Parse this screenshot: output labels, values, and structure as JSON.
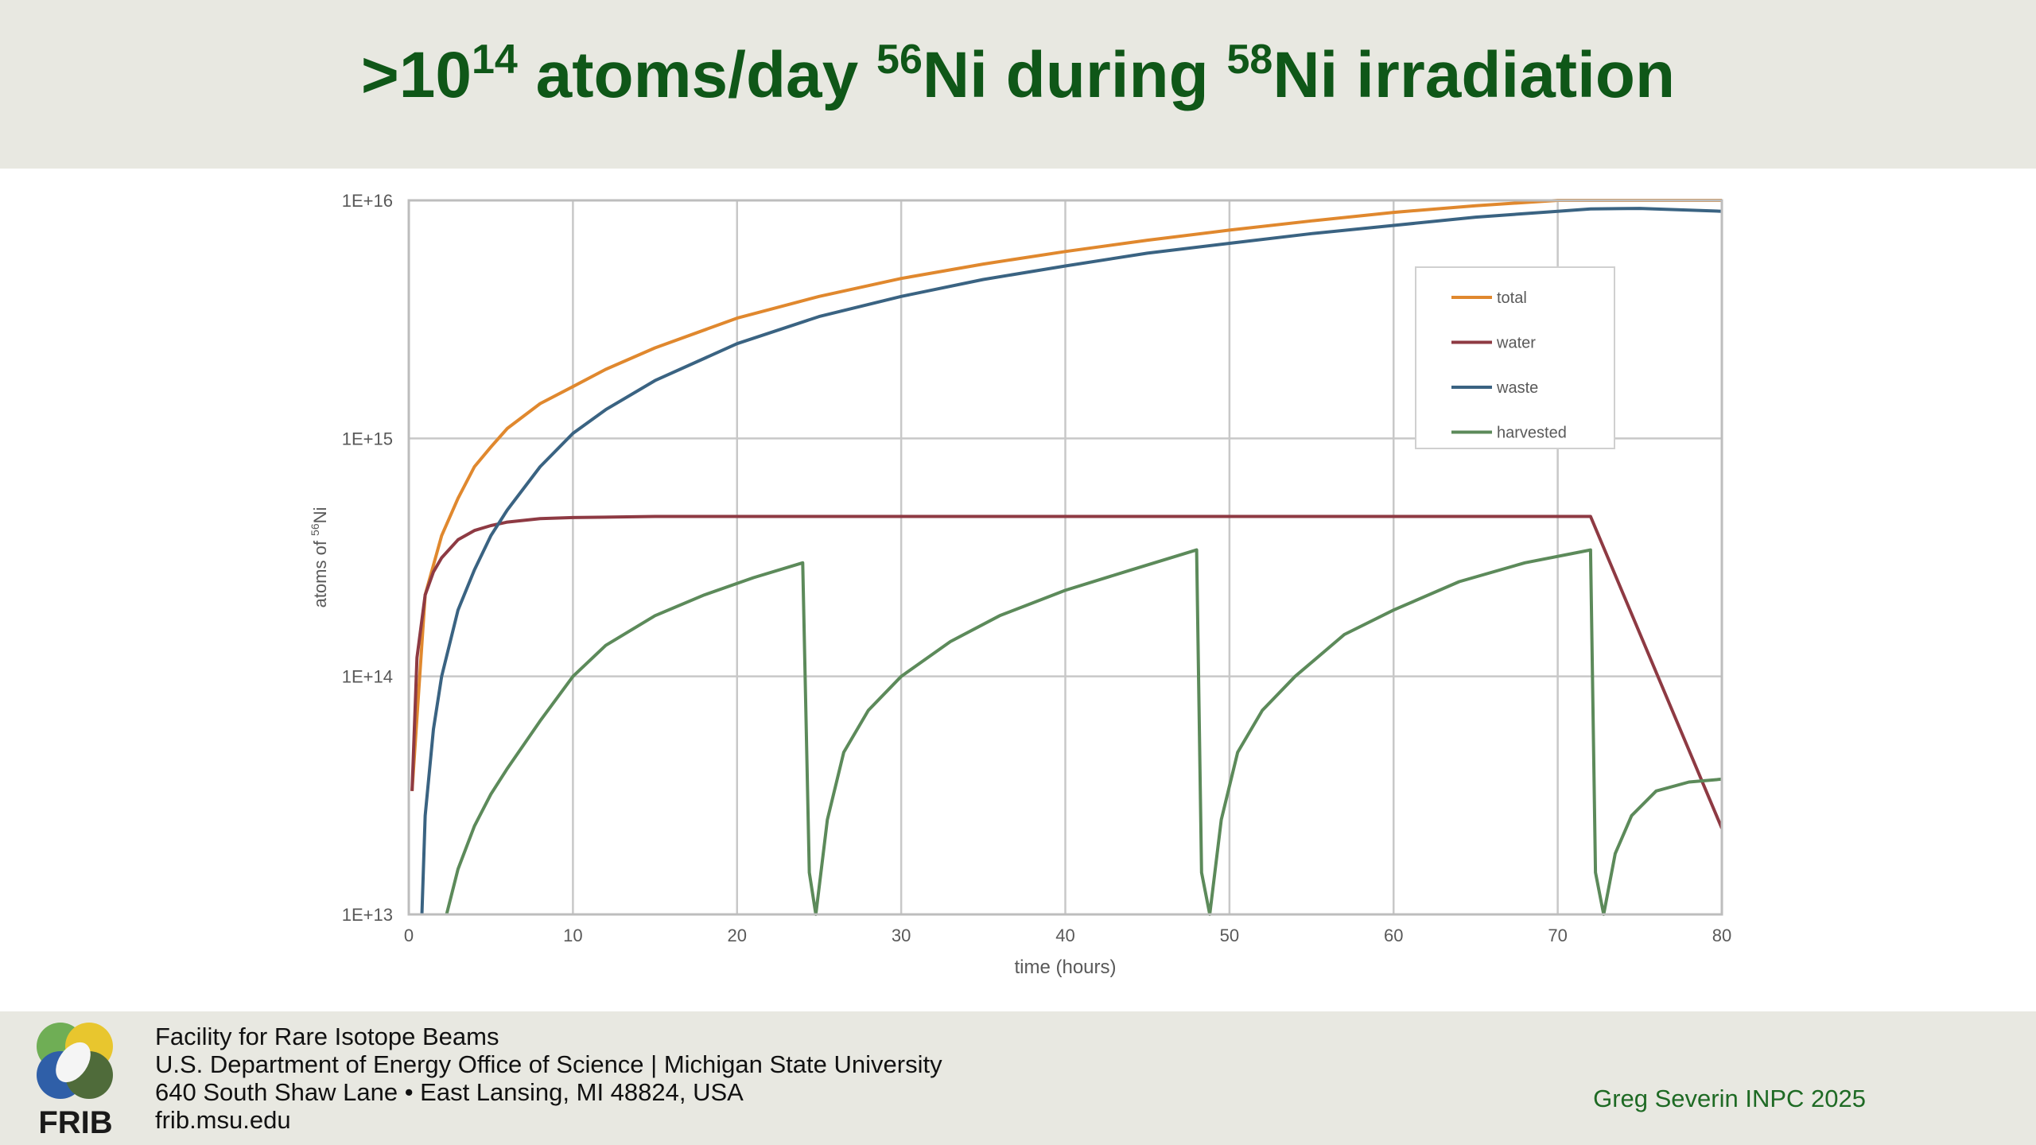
{
  "slide": {
    "title_parts": [
      ">10",
      "14",
      " atoms/day ",
      "56",
      "Ni during ",
      "58",
      "Ni irradiation"
    ]
  },
  "footer": {
    "logo_text": "FRIB",
    "address_lines": [
      "Facility for Rare Isotope Beams",
      "U.S. Department of Energy Office of Science | Michigan State University",
      "640 South Shaw Lane • East Lansing, MI 48824, USA",
      "frib.msu.edu"
    ],
    "credit": "Greg Severin INPC 2025"
  },
  "colors": {
    "title": "#0f5718",
    "header_bg": "#e8e8e1",
    "grid": "#c8c8c8",
    "credit": "#1e6a24"
  },
  "chart_data": {
    "type": "line",
    "title": "",
    "xlabel": "time (hours)",
    "ylabel_parts": [
      "atoms of ",
      "56",
      "Ni"
    ],
    "xlim": [
      0,
      80
    ],
    "ylim": [
      10000000000000.0,
      1e+16
    ],
    "yscale": "log",
    "xticks": [
      0,
      10,
      20,
      30,
      40,
      50,
      60,
      70,
      80
    ],
    "xtick_labels": [
      "0",
      "10",
      "20",
      "30",
      "40",
      "50",
      "60",
      "70",
      "80"
    ],
    "yticks": [
      10000000000000.0,
      100000000000000.0,
      1000000000000000.0,
      1e+16
    ],
    "ytick_labels": [
      "1E+13",
      "1E+14",
      "1E+15",
      "1E+16"
    ],
    "grid": true,
    "legend_position": "top-right",
    "series": [
      {
        "name": "total",
        "color": "#e0882e",
        "x": [
          0.2,
          1,
          2,
          3,
          4,
          5,
          6,
          8,
          10,
          12,
          15,
          20,
          25,
          30,
          35,
          40,
          45,
          50,
          55,
          60,
          65,
          70,
          72,
          75,
          80
        ],
        "y": [
          33000000000000.0,
          220000000000000.0,
          390000000000000.0,
          560000000000000.0,
          760000000000000.0,
          920000000000000.0,
          1100000000000000.0,
          1400000000000000.0,
          1650000000000000.0,
          1950000000000000.0,
          2400000000000000.0,
          3200000000000000.0,
          3950000000000000.0,
          4700000000000000.0,
          5400000000000000.0,
          6100000000000000.0,
          6800000000000000.0,
          7500000000000000.0,
          8200000000000000.0,
          8900000000000000.0,
          9500000000000000.0,
          1e+16,
          1e+16,
          1e+16,
          1e+16
        ]
      },
      {
        "name": "water",
        "color": "#8e3a43",
        "x": [
          0.2,
          0.5,
          1,
          1.5,
          2,
          3,
          4,
          5,
          6,
          8,
          10,
          15,
          20,
          72,
          80
        ],
        "y": [
          33000000000000.0,
          120000000000000.0,
          220000000000000.0,
          275000000000000.0,
          315000000000000.0,
          375000000000000.0,
          410000000000000.0,
          430000000000000.0,
          445000000000000.0,
          460000000000000.0,
          465000000000000.0,
          470000000000000.0,
          470000000000000.0,
          470000000000000.0,
          23000000000000.0
        ]
      },
      {
        "name": "waste",
        "color": "#3a6382",
        "x": [
          0.8,
          1,
          1.5,
          2,
          3,
          4,
          5,
          6,
          8,
          10,
          12,
          15,
          20,
          25,
          30,
          35,
          40,
          45,
          50,
          55,
          60,
          65,
          70,
          72,
          75,
          80
        ],
        "y": [
          10000000000000.0,
          26000000000000.0,
          60000000000000.0,
          100000000000000.0,
          190000000000000.0,
          280000000000000.0,
          390000000000000.0,
          500000000000000.0,
          760000000000000.0,
          1050000000000000.0,
          1320000000000000.0,
          1750000000000000.0,
          2500000000000000.0,
          3250000000000000.0,
          3950000000000000.0,
          4650000000000000.0,
          5300000000000000.0,
          6000000000000000.0,
          6600000000000000.0,
          7250000000000000.0,
          7850000000000000.0,
          8500000000000000.0,
          9000000000000000.0,
          9200000000000000.0,
          9250000000000000.0,
          9000000000000000.0
        ]
      },
      {
        "name": "harvested",
        "color": "#5c8a5a",
        "x": [
          2.3,
          3,
          4,
          5,
          6,
          8,
          10,
          12,
          15,
          18,
          21,
          24,
          24.4,
          24.8,
          25.5,
          26.5,
          28,
          30,
          33,
          36,
          40,
          44,
          48,
          48.3,
          48.8,
          49.5,
          50.5,
          52,
          54,
          57,
          60,
          64,
          68,
          72,
          72.3,
          72.8,
          73.5,
          74.5,
          76,
          78,
          80
        ],
        "y": [
          10000000000000.0,
          15500000000000.0,
          23500000000000.0,
          32000000000000.0,
          41000000000000.0,
          65000000000000.0,
          100000000000000.0,
          135000000000000.0,
          180000000000000.0,
          220000000000000.0,
          260000000000000.0,
          300000000000000.0,
          15000000000000.0,
          10000000000000.0,
          25000000000000.0,
          48000000000000.0,
          72000000000000.0,
          100000000000000.0,
          140000000000000.0,
          180000000000000.0,
          230000000000000.0,
          280000000000000.0,
          340000000000000.0,
          15000000000000.0,
          10000000000000.0,
          25000000000000.0,
          48000000000000.0,
          72000000000000.0,
          100000000000000.0,
          150000000000000.0,
          190000000000000.0,
          250000000000000.0,
          300000000000000.0,
          340000000000000.0,
          15000000000000.0,
          10000000000000.0,
          18000000000000.0,
          26000000000000.0,
          33000000000000.0,
          36000000000000.0,
          37000000000000.0
        ]
      }
    ]
  }
}
